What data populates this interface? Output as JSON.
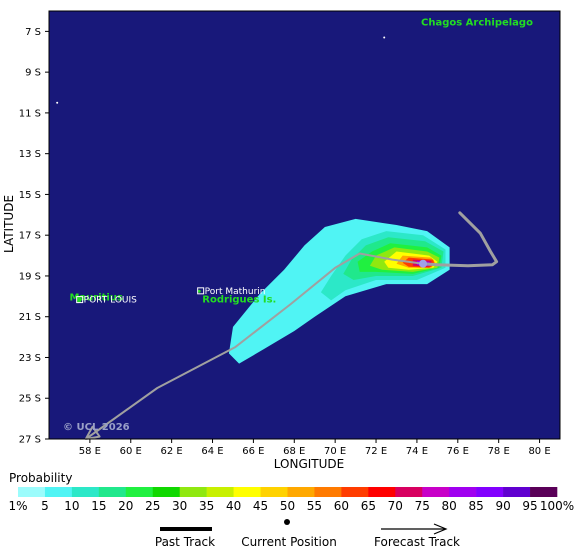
{
  "map": {
    "lon_range": [
      56.0,
      81.0
    ],
    "lat_range": [
      -27.0,
      -6.0
    ],
    "background": "#18187a",
    "xlabel": "LONGITUDE",
    "ylabel": "LATITUDE",
    "x_ticks": [
      {
        "value": 58,
        "label": "58 E"
      },
      {
        "value": 60,
        "label": "60 E"
      },
      {
        "value": 62,
        "label": "62 E"
      },
      {
        "value": 64,
        "label": "64 E"
      },
      {
        "value": 66,
        "label": "66 E"
      },
      {
        "value": 68,
        "label": "68 E"
      },
      {
        "value": 70,
        "label": "70 E"
      },
      {
        "value": 72,
        "label": "72 E"
      },
      {
        "value": 74,
        "label": "74 E"
      },
      {
        "value": 76,
        "label": "76 E"
      },
      {
        "value": 78,
        "label": "78 E"
      },
      {
        "value": 80,
        "label": "80 E"
      }
    ],
    "y_ticks": [
      {
        "value": -7,
        "label": "7 S"
      },
      {
        "value": -9,
        "label": "9 S"
      },
      {
        "value": -11,
        "label": "11 S"
      },
      {
        "value": -13,
        "label": "13 S"
      },
      {
        "value": -15,
        "label": "15 S"
      },
      {
        "value": -17,
        "label": "17 S"
      },
      {
        "value": -19,
        "label": "19 S"
      },
      {
        "value": -21,
        "label": "21 S"
      },
      {
        "value": -23,
        "label": "23 S"
      },
      {
        "value": -25,
        "label": "25 S"
      },
      {
        "value": -27,
        "label": "27 S"
      }
    ],
    "places": [
      {
        "name": "Chagos Archipelago",
        "lon": 74.2,
        "lat": -6.7
      },
      {
        "name": "Mauritius",
        "lon": 57.0,
        "lat": -20.2
      },
      {
        "name": "Rodrigues Is.",
        "lon": 63.5,
        "lat": -20.3
      }
    ],
    "cities": [
      {
        "name": "PORT LOUIS",
        "lon": 57.5,
        "lat": -20.16
      },
      {
        "name": "Port Mathurin",
        "lon": 63.42,
        "lat": -19.73
      }
    ],
    "copyright": "© UCL 2026"
  },
  "past_track": [
    [
      76.1,
      -15.9
    ],
    [
      77.1,
      -16.9
    ],
    [
      77.6,
      -17.8
    ],
    [
      77.9,
      -18.3
    ],
    [
      77.7,
      -18.45
    ],
    [
      76.5,
      -18.5
    ],
    [
      75.0,
      -18.45
    ],
    [
      74.3,
      -18.4
    ]
  ],
  "current_position": {
    "lon": 74.3,
    "lat": -18.4
  },
  "forecast_track": [
    [
      74.3,
      -18.4
    ],
    [
      72.8,
      -18.2
    ],
    [
      71.2,
      -17.9
    ],
    [
      70.0,
      -18.6
    ],
    [
      67.8,
      -20.4
    ],
    [
      65.1,
      -22.5
    ],
    [
      61.3,
      -24.5
    ],
    [
      57.8,
      -27.0
    ]
  ],
  "probability_zones": [
    {
      "level": 5,
      "points": [
        [
          73.0,
          -16.5
        ],
        [
          74.5,
          -16.8
        ],
        [
          75.6,
          -17.6
        ],
        [
          75.6,
          -18.7
        ],
        [
          74.5,
          -19.4
        ],
        [
          72.5,
          -19.4
        ],
        [
          70.5,
          -20.0
        ],
        [
          69.0,
          -21.0
        ],
        [
          68.0,
          -21.7
        ],
        [
          66.5,
          -22.6
        ],
        [
          65.3,
          -23.3
        ],
        [
          64.8,
          -22.8
        ],
        [
          65.0,
          -21.5
        ],
        [
          66.3,
          -19.9
        ],
        [
          67.5,
          -18.7
        ],
        [
          68.5,
          -17.5
        ],
        [
          69.5,
          -16.6
        ],
        [
          71.0,
          -16.2
        ]
      ]
    },
    {
      "level": 10,
      "points": [
        [
          72.5,
          -16.8
        ],
        [
          74.3,
          -17.0
        ],
        [
          75.4,
          -17.7
        ],
        [
          75.4,
          -18.6
        ],
        [
          74.0,
          -19.2
        ],
        [
          72.0,
          -19.2
        ],
        [
          70.5,
          -19.7
        ],
        [
          69.8,
          -20.2
        ],
        [
          69.3,
          -19.8
        ],
        [
          69.8,
          -19.0
        ],
        [
          70.5,
          -18.0
        ],
        [
          71.3,
          -17.2
        ]
      ]
    },
    {
      "level": 15,
      "points": [
        [
          72.6,
          -17.1
        ],
        [
          74.4,
          -17.3
        ],
        [
          75.3,
          -17.8
        ],
        [
          75.2,
          -18.6
        ],
        [
          73.8,
          -19.0
        ],
        [
          72.0,
          -19.0
        ],
        [
          70.9,
          -19.2
        ],
        [
          70.4,
          -18.9
        ],
        [
          70.8,
          -18.2
        ],
        [
          71.5,
          -17.5
        ]
      ]
    },
    {
      "level": 20,
      "points": [
        [
          72.7,
          -17.4
        ],
        [
          74.5,
          -17.6
        ],
        [
          75.2,
          -18.0
        ],
        [
          75.1,
          -18.6
        ],
        [
          73.8,
          -18.9
        ],
        [
          72.0,
          -18.8
        ],
        [
          71.2,
          -18.8
        ],
        [
          71.1,
          -18.3
        ],
        [
          71.8,
          -17.8
        ]
      ]
    },
    {
      "level": 30,
      "points": [
        [
          72.9,
          -17.6
        ],
        [
          74.5,
          -17.8
        ],
        [
          75.1,
          -18.1
        ],
        [
          75.0,
          -18.6
        ],
        [
          73.8,
          -18.8
        ],
        [
          72.3,
          -18.7
        ],
        [
          71.7,
          -18.5
        ],
        [
          72.0,
          -18.0
        ]
      ]
    },
    {
      "level": 40,
      "points": [
        [
          73.0,
          -17.8
        ],
        [
          74.6,
          -18.0
        ],
        [
          75.0,
          -18.3
        ],
        [
          74.8,
          -18.6
        ],
        [
          73.6,
          -18.7
        ],
        [
          72.6,
          -18.6
        ],
        [
          72.4,
          -18.3
        ]
      ]
    },
    {
      "level": 50,
      "points": [
        [
          73.3,
          -18.0
        ],
        [
          74.7,
          -18.1
        ],
        [
          74.9,
          -18.35
        ],
        [
          74.7,
          -18.6
        ],
        [
          73.6,
          -18.6
        ],
        [
          73.0,
          -18.4
        ]
      ]
    },
    {
      "level": 60,
      "points": [
        [
          73.6,
          -18.1
        ],
        [
          74.8,
          -18.2
        ],
        [
          74.85,
          -18.45
        ],
        [
          74.6,
          -18.6
        ],
        [
          73.6,
          -18.55
        ],
        [
          73.3,
          -18.35
        ]
      ]
    },
    {
      "level": 70,
      "points": [
        [
          73.8,
          -18.2
        ],
        [
          74.7,
          -18.25
        ],
        [
          74.75,
          -18.5
        ],
        [
          74.5,
          -18.55
        ],
        [
          73.8,
          -18.5
        ]
      ]
    },
    {
      "level": 80,
      "points": [
        [
          74.0,
          -18.25
        ],
        [
          74.6,
          -18.3
        ],
        [
          74.65,
          -18.5
        ],
        [
          74.3,
          -18.52
        ],
        [
          74.0,
          -18.45
        ]
      ]
    }
  ],
  "legend": {
    "title": "Probability",
    "labels": [
      "1%",
      "5",
      "10",
      "15",
      "20",
      "25",
      "30",
      "35",
      "40",
      "45",
      "50",
      "55",
      "60",
      "65",
      "70",
      "75",
      "80",
      "85",
      "90",
      "95",
      "100%"
    ],
    "colors": [
      "#9bfcfc",
      "#50f4f4",
      "#2ce8c8",
      "#20e88c",
      "#20f040",
      "#10d800",
      "#90e810",
      "#c8f000",
      "#ffff00",
      "#ffd200",
      "#ffa800",
      "#ff7a00",
      "#ff3c00",
      "#ff0000",
      "#d80060",
      "#c800c8",
      "#a000f0",
      "#8200ff",
      "#6000d0",
      "#5a0058"
    ],
    "past_track_label": "Past Track",
    "current_position_label": "Current Position",
    "forecast_track_label": "Forecast Track"
  }
}
